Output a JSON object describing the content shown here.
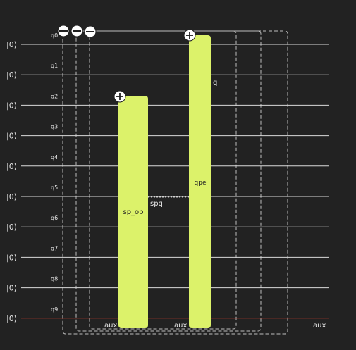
{
  "colors": {
    "background": "#222222",
    "wire": "#d9d9d9",
    "aux_wire": "#c0392b",
    "gate_fill": "#dcf26a",
    "box_stroke": "#bdbdbd",
    "text": "#e6e6e6"
  },
  "circuit": {
    "ket_label": "|0⟩",
    "qubits": [
      "q0",
      "q1",
      "q2",
      "q3",
      "q4",
      "q5",
      "q6",
      "q7",
      "q8",
      "q9"
    ],
    "aux_wire_label": "aux",
    "gates": [
      {
        "id": "sp_op",
        "label": "sp_op",
        "from_qubit": 2,
        "to_qubit": 9,
        "control_icon": "plus-icon",
        "bottom_label": "aux",
        "side_label": "spq"
      },
      {
        "id": "qpe",
        "label": "qpe",
        "from_qubit": 0,
        "to_qubit": 9,
        "control_icon": "plus-icon",
        "bottom_label": "aux",
        "side_label": "q"
      }
    ],
    "collapse_icons": [
      "minus-icon",
      "minus-icon",
      "minus-icon"
    ]
  }
}
